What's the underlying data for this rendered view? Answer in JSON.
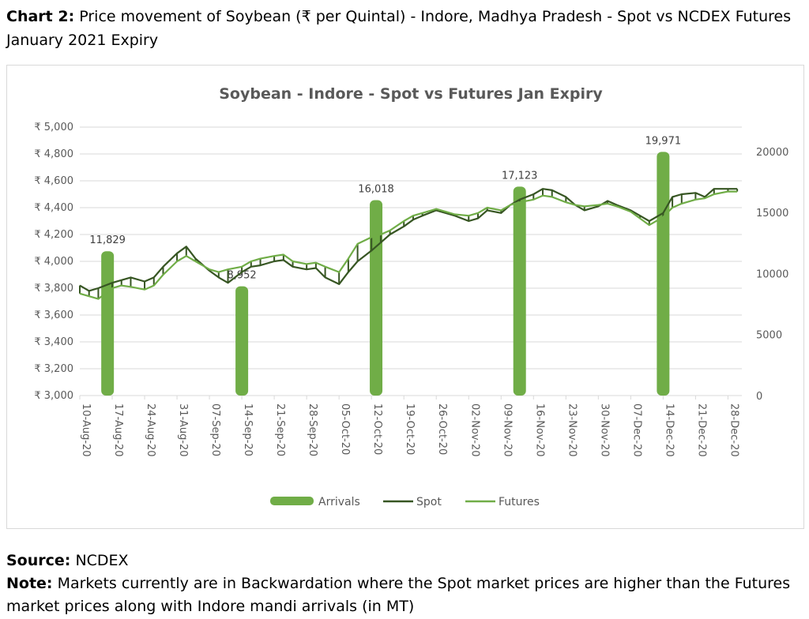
{
  "caption": {
    "label": "Chart 2:",
    "text": "Price movement of Soybean (₹ per Quintal) - Indore, Madhya Pradesh - Spot vs NCDEX Futures January 2021 Expiry"
  },
  "footer": {
    "source_label": "Source:",
    "source_text": "NCDEX",
    "note_label": "Note:",
    "note_text": "Markets currently are in Backwardation where the Spot market prices are higher than the Futures market prices along with Indore mandi arrivals (in MT)"
  },
  "colors": {
    "spot": "#375623",
    "futures": "#70ad47",
    "arrivals": "#70ad47",
    "grid": "#d9d9d9",
    "text": "#595959"
  },
  "chart_data": {
    "type": "line",
    "title": "Soybean - Indore - Spot vs Futures Jan Expiry",
    "y_left": {
      "min": 3000,
      "max": 5000,
      "step": 200,
      "tick_labels": [
        "₹ 3,000",
        "₹ 3,200",
        "₹ 3,400",
        "₹ 3,600",
        "₹ 3,800",
        "₹ 4,000",
        "₹ 4,200",
        "₹ 4,400",
        "₹ 4,600",
        "₹ 4,800",
        "₹ 5,000"
      ]
    },
    "y_right": {
      "min": 0,
      "max": 22000,
      "ticks": [
        0,
        5000,
        10000,
        15000,
        20000
      ],
      "tick_labels": [
        "0",
        "5000",
        "10000",
        "15000",
        "20000"
      ]
    },
    "x_axis": {
      "start": "2020-08-10",
      "end": "2020-12-31",
      "tick_dates": [
        "2020-08-10",
        "2020-08-17",
        "2020-08-24",
        "2020-08-31",
        "2020-09-07",
        "2020-09-14",
        "2020-09-21",
        "2020-09-28",
        "2020-10-05",
        "2020-10-12",
        "2020-10-19",
        "2020-10-26",
        "2020-11-02",
        "2020-11-09",
        "2020-11-16",
        "2020-11-23",
        "2020-11-30",
        "2020-12-07",
        "2020-12-14",
        "2020-12-21",
        "2020-12-28"
      ],
      "tick_labels": [
        "10-Aug-20",
        "17-Aug-20",
        "24-Aug-20",
        "31-Aug-20",
        "07-Sep-20",
        "14-Sep-20",
        "21-Sep-20",
        "28-Sep-20",
        "05-Oct-20",
        "12-Oct-20",
        "19-Oct-20",
        "26-Oct-20",
        "02-Nov-20",
        "09-Nov-20",
        "16-Nov-20",
        "23-Nov-20",
        "30-Nov-20",
        "07-Dec-20",
        "14-Dec-20",
        "21-Dec-20",
        "28-Dec-20"
      ]
    },
    "legend": [
      "Arrivals",
      "Spot",
      "Futures"
    ],
    "legend_position": "bottom",
    "grid": "horizontal",
    "arrivals": [
      {
        "date": "2020-08-16",
        "value": 11829,
        "label": "11,829"
      },
      {
        "date": "2020-09-14",
        "value": 8952,
        "label": "8,952"
      },
      {
        "date": "2020-10-13",
        "value": 16018,
        "label": "16,018"
      },
      {
        "date": "2020-11-13",
        "value": 17123,
        "label": "17,123"
      },
      {
        "date": "2020-12-14",
        "value": 19971,
        "label": "19,971"
      }
    ],
    "series": [
      {
        "name": "Spot",
        "points": [
          [
            "2020-08-10",
            3820
          ],
          [
            "2020-08-12",
            3780
          ],
          [
            "2020-08-14",
            3800
          ],
          [
            "2020-08-17",
            3840
          ],
          [
            "2020-08-19",
            3860
          ],
          [
            "2020-08-21",
            3880
          ],
          [
            "2020-08-24",
            3850
          ],
          [
            "2020-08-26",
            3880
          ],
          [
            "2020-08-28",
            3960
          ],
          [
            "2020-08-31",
            4060
          ],
          [
            "2020-09-02",
            4110
          ],
          [
            "2020-09-04",
            4020
          ],
          [
            "2020-09-07",
            3930
          ],
          [
            "2020-09-09",
            3880
          ],
          [
            "2020-09-11",
            3840
          ],
          [
            "2020-09-14",
            3920
          ],
          [
            "2020-09-16",
            3960
          ],
          [
            "2020-09-18",
            3970
          ],
          [
            "2020-09-21",
            4000
          ],
          [
            "2020-09-23",
            4010
          ],
          [
            "2020-09-25",
            3960
          ],
          [
            "2020-09-28",
            3940
          ],
          [
            "2020-09-30",
            3950
          ],
          [
            "2020-10-02",
            3880
          ],
          [
            "2020-10-05",
            3830
          ],
          [
            "2020-10-07",
            3920
          ],
          [
            "2020-10-09",
            4000
          ],
          [
            "2020-10-12",
            4080
          ],
          [
            "2020-10-14",
            4140
          ],
          [
            "2020-10-16",
            4200
          ],
          [
            "2020-10-19",
            4260
          ],
          [
            "2020-10-21",
            4310
          ],
          [
            "2020-10-23",
            4340
          ],
          [
            "2020-10-26",
            4380
          ],
          [
            "2020-10-28",
            4360
          ],
          [
            "2020-10-30",
            4340
          ],
          [
            "2020-11-02",
            4300
          ],
          [
            "2020-11-04",
            4320
          ],
          [
            "2020-11-06",
            4380
          ],
          [
            "2020-11-09",
            4360
          ],
          [
            "2020-11-11",
            4420
          ],
          [
            "2020-11-13",
            4460
          ],
          [
            "2020-11-16",
            4500
          ],
          [
            "2020-11-18",
            4540
          ],
          [
            "2020-11-20",
            4530
          ],
          [
            "2020-11-23",
            4480
          ],
          [
            "2020-11-25",
            4420
          ],
          [
            "2020-11-27",
            4380
          ],
          [
            "2020-11-30",
            4410
          ],
          [
            "2020-12-02",
            4450
          ],
          [
            "2020-12-04",
            4420
          ],
          [
            "2020-12-07",
            4380
          ],
          [
            "2020-12-09",
            4340
          ],
          [
            "2020-12-11",
            4300
          ],
          [
            "2020-12-14",
            4360
          ],
          [
            "2020-12-16",
            4480
          ],
          [
            "2020-12-18",
            4500
          ],
          [
            "2020-12-21",
            4510
          ],
          [
            "2020-12-23",
            4480
          ],
          [
            "2020-12-25",
            4540
          ],
          [
            "2020-12-28",
            4540
          ],
          [
            "2020-12-30",
            4540
          ]
        ]
      },
      {
        "name": "Futures",
        "points": [
          [
            "2020-08-10",
            3760
          ],
          [
            "2020-08-12",
            3740
          ],
          [
            "2020-08-14",
            3720
          ],
          [
            "2020-08-17",
            3800
          ],
          [
            "2020-08-19",
            3820
          ],
          [
            "2020-08-21",
            3810
          ],
          [
            "2020-08-24",
            3790
          ],
          [
            "2020-08-26",
            3820
          ],
          [
            "2020-08-28",
            3900
          ],
          [
            "2020-08-31",
            4000
          ],
          [
            "2020-09-02",
            4040
          ],
          [
            "2020-09-04",
            4000
          ],
          [
            "2020-09-07",
            3940
          ],
          [
            "2020-09-09",
            3920
          ],
          [
            "2020-09-11",
            3940
          ],
          [
            "2020-09-14",
            3960
          ],
          [
            "2020-09-16",
            4000
          ],
          [
            "2020-09-18",
            4020
          ],
          [
            "2020-09-21",
            4040
          ],
          [
            "2020-09-23",
            4050
          ],
          [
            "2020-09-25",
            4000
          ],
          [
            "2020-09-28",
            3980
          ],
          [
            "2020-09-30",
            3990
          ],
          [
            "2020-10-02",
            3960
          ],
          [
            "2020-10-05",
            3920
          ],
          [
            "2020-10-07",
            4020
          ],
          [
            "2020-10-09",
            4130
          ],
          [
            "2020-10-12",
            4180
          ],
          [
            "2020-10-14",
            4200
          ],
          [
            "2020-10-16",
            4230
          ],
          [
            "2020-10-19",
            4300
          ],
          [
            "2020-10-21",
            4340
          ],
          [
            "2020-10-23",
            4360
          ],
          [
            "2020-10-26",
            4390
          ],
          [
            "2020-10-28",
            4370
          ],
          [
            "2020-10-30",
            4350
          ],
          [
            "2020-11-02",
            4340
          ],
          [
            "2020-11-04",
            4360
          ],
          [
            "2020-11-06",
            4400
          ],
          [
            "2020-11-09",
            4380
          ],
          [
            "2020-11-11",
            4420
          ],
          [
            "2020-11-13",
            4440
          ],
          [
            "2020-11-16",
            4460
          ],
          [
            "2020-11-18",
            4490
          ],
          [
            "2020-11-20",
            4480
          ],
          [
            "2020-11-23",
            4440
          ],
          [
            "2020-11-25",
            4420
          ],
          [
            "2020-11-27",
            4410
          ],
          [
            "2020-11-30",
            4420
          ],
          [
            "2020-12-02",
            4430
          ],
          [
            "2020-12-04",
            4410
          ],
          [
            "2020-12-07",
            4370
          ],
          [
            "2020-12-09",
            4320
          ],
          [
            "2020-12-11",
            4270
          ],
          [
            "2020-12-14",
            4330
          ],
          [
            "2020-12-16",
            4400
          ],
          [
            "2020-12-18",
            4430
          ],
          [
            "2020-12-21",
            4460
          ],
          [
            "2020-12-23",
            4470
          ],
          [
            "2020-12-25",
            4500
          ],
          [
            "2020-12-28",
            4520
          ],
          [
            "2020-12-30",
            4520
          ]
        ]
      }
    ]
  }
}
